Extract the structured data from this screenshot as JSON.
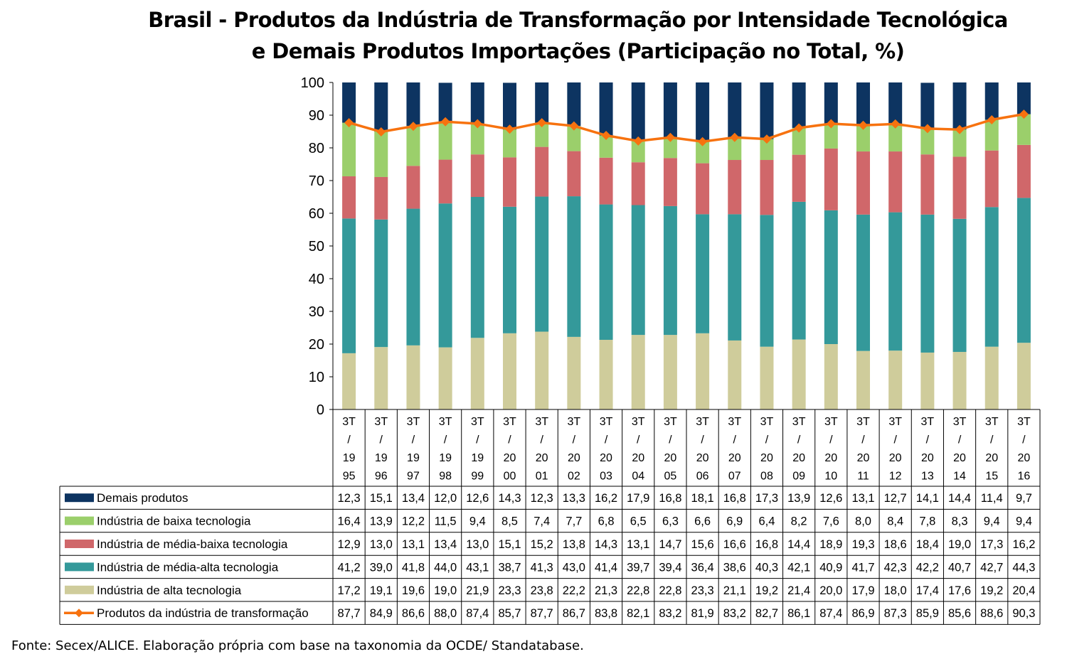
{
  "title_line1": "Brasil - Produtos da Indústria de Transformação por Intensidade Tecnológica",
  "title_line2": "e Demais Produtos Importações (Participação no Total, %)",
  "source": "Fonte: Secex/ALICE. Elaboração própria com base na taxonomia da OCDE/ Standatabase.",
  "chart_data": {
    "type": "bar",
    "stacked": true,
    "with_data_table": true,
    "ylim": [
      0,
      100
    ],
    "yticks": [
      0,
      10,
      20,
      30,
      40,
      50,
      60,
      70,
      80,
      90,
      100
    ],
    "categories": [
      [
        "3T",
        "/",
        "19",
        "95"
      ],
      [
        "3T",
        "/",
        "19",
        "96"
      ],
      [
        "3T",
        "/",
        "19",
        "97"
      ],
      [
        "3T",
        "/",
        "19",
        "98"
      ],
      [
        "3T",
        "/",
        "19",
        "99"
      ],
      [
        "3T",
        "/",
        "20",
        "00"
      ],
      [
        "3T",
        "/",
        "20",
        "01"
      ],
      [
        "3T",
        "/",
        "20",
        "02"
      ],
      [
        "3T",
        "/",
        "20",
        "03"
      ],
      [
        "3T",
        "/",
        "20",
        "04"
      ],
      [
        "3T",
        "/",
        "20",
        "05"
      ],
      [
        "3T",
        "/",
        "20",
        "06"
      ],
      [
        "3T",
        "/",
        "20",
        "07"
      ],
      [
        "3T",
        "/",
        "20",
        "08"
      ],
      [
        "3T",
        "/",
        "20",
        "09"
      ],
      [
        "3T",
        "/",
        "20",
        "10"
      ],
      [
        "3T",
        "/",
        "20",
        "11"
      ],
      [
        "3T",
        "/",
        "20",
        "12"
      ],
      [
        "3T",
        "/",
        "20",
        "13"
      ],
      [
        "3T",
        "/",
        "20",
        "14"
      ],
      [
        "3T",
        "/",
        "20",
        "15"
      ],
      [
        "3T",
        "/",
        "20",
        "16"
      ]
    ],
    "series": [
      {
        "name": "Demais produtos",
        "kind": "bar",
        "color": "#0D3461",
        "values": [
          "12,3",
          "15,1",
          "13,4",
          "12,0",
          "12,6",
          "14,3",
          "12,3",
          "13,3",
          "16,2",
          "17,9",
          "16,8",
          "18,1",
          "16,8",
          "17,3",
          "13,9",
          "12,6",
          "13,1",
          "12,7",
          "14,1",
          "14,4",
          "11,4",
          "9,7"
        ]
      },
      {
        "name": "Indústria de baixa tecnologia",
        "kind": "bar",
        "color": "#9BCF6B",
        "values": [
          "16,4",
          "13,9",
          "12,2",
          "11,5",
          "9,4",
          "8,5",
          "7,4",
          "7,7",
          "6,8",
          "6,5",
          "6,3",
          "6,6",
          "6,9",
          "6,4",
          "8,2",
          "7,6",
          "8,0",
          "8,4",
          "7,8",
          "8,3",
          "9,4",
          "9,4"
        ]
      },
      {
        "name": "Indústria de média-baixa tecnologia",
        "kind": "bar",
        "color": "#D0676A",
        "values": [
          "12,9",
          "13,0",
          "13,1",
          "13,4",
          "13,0",
          "15,1",
          "15,2",
          "13,8",
          "14,3",
          "13,1",
          "14,7",
          "15,6",
          "16,6",
          "16,8",
          "14,4",
          "18,9",
          "19,3",
          "18,6",
          "18,4",
          "19,0",
          "17,3",
          "16,2"
        ]
      },
      {
        "name": "Indústria de média-alta tecnologia",
        "kind": "bar",
        "color": "#34999A",
        "values": [
          "41,2",
          "39,0",
          "41,8",
          "44,0",
          "43,1",
          "38,7",
          "41,3",
          "43,0",
          "41,4",
          "39,7",
          "39,4",
          "36,4",
          "38,6",
          "40,3",
          "42,1",
          "40,9",
          "41,7",
          "42,3",
          "42,2",
          "40,7",
          "42,7",
          "44,3"
        ]
      },
      {
        "name": "Indústria de alta tecnologia",
        "kind": "bar",
        "color": "#CFCC9B",
        "values": [
          "17,2",
          "19,1",
          "19,6",
          "19,0",
          "21,9",
          "23,3",
          "23,8",
          "22,2",
          "21,3",
          "22,8",
          "22,8",
          "23,3",
          "21,1",
          "19,2",
          "21,4",
          "20,0",
          "17,9",
          "18,0",
          "17,4",
          "17,6",
          "19,2",
          "20,4"
        ]
      },
      {
        "name": "Produtos da indústria de transformação",
        "kind": "line",
        "color": "#F7720F",
        "values": [
          "87,7",
          "84,9",
          "86,6",
          "88,0",
          "87,4",
          "85,7",
          "87,7",
          "86,7",
          "83,8",
          "82,1",
          "83,2",
          "81,9",
          "83,2",
          "82,7",
          "86,1",
          "87,4",
          "86,9",
          "87,3",
          "85,9",
          "85,6",
          "88,6",
          "90,3"
        ]
      }
    ],
    "stack_order_bottom_to_top": [
      "Indústria de alta tecnologia",
      "Indústria de média-alta tecnologia",
      "Indústria de média-baixa tecnologia",
      "Indústria de baixa tecnologia",
      "Demais produtos"
    ]
  }
}
